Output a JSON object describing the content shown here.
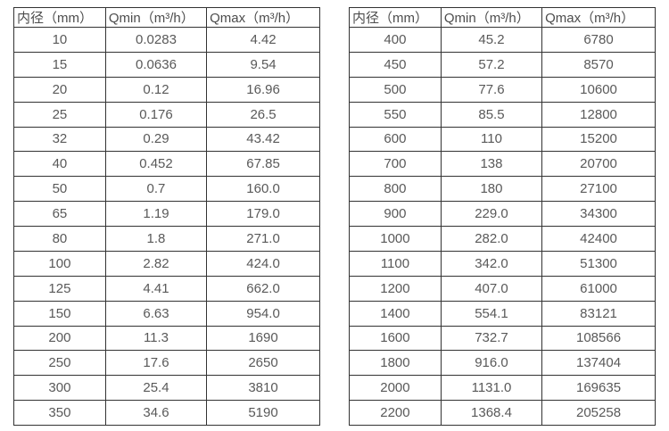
{
  "page": {
    "background": "#ffffff",
    "border_color": "#333333",
    "text_color": "#595959"
  },
  "tables": [
    {
      "name": "flow-spec-table-small-diameters",
      "headers": [
        "内径（mm）",
        "Qmin（m³/h）",
        "Qmax（m³/h）"
      ],
      "rows": [
        [
          "10",
          "0.0283",
          "4.42"
        ],
        [
          "15",
          "0.0636",
          "9.54"
        ],
        [
          "20",
          "0.12",
          "16.96"
        ],
        [
          "25",
          "0.176",
          "26.5"
        ],
        [
          "32",
          "0.29",
          "43.42"
        ],
        [
          "40",
          "0.452",
          "67.85"
        ],
        [
          "50",
          "0.7",
          "160.0"
        ],
        [
          "65",
          "1.19",
          "179.0"
        ],
        [
          "80",
          "1.8",
          "271.0"
        ],
        [
          "100",
          "2.82",
          "424.0"
        ],
        [
          "125",
          "4.41",
          "662.0"
        ],
        [
          "150",
          "6.63",
          "954.0"
        ],
        [
          "200",
          "11.3",
          "1690"
        ],
        [
          "250",
          "17.6",
          "2650"
        ],
        [
          "300",
          "25.4",
          "3810"
        ],
        [
          "350",
          "34.6",
          "5190"
        ]
      ]
    },
    {
      "name": "flow-spec-table-large-diameters",
      "headers": [
        "内径（mm）",
        "Qmin（m³/h）",
        "Qmax（m³/h）"
      ],
      "rows": [
        [
          "400",
          "45.2",
          "6780"
        ],
        [
          "450",
          "57.2",
          "8570"
        ],
        [
          "500",
          "77.6",
          "10600"
        ],
        [
          "550",
          "85.5",
          "12800"
        ],
        [
          "600",
          "110",
          "15200"
        ],
        [
          "700",
          "138",
          "20700"
        ],
        [
          "800",
          "180",
          "27100"
        ],
        [
          "900",
          "229.0",
          "34300"
        ],
        [
          "1000",
          "282.0",
          "42400"
        ],
        [
          "1100",
          "342.0",
          "51300"
        ],
        [
          "1200",
          "407.0",
          "61000"
        ],
        [
          "1400",
          "554.1",
          "83121"
        ],
        [
          "1600",
          "732.7",
          "108566"
        ],
        [
          "1800",
          "916.0",
          "137404"
        ],
        [
          "2000",
          "1131.0",
          "169635"
        ],
        [
          "2200",
          "1368.4",
          "205258"
        ]
      ]
    }
  ]
}
